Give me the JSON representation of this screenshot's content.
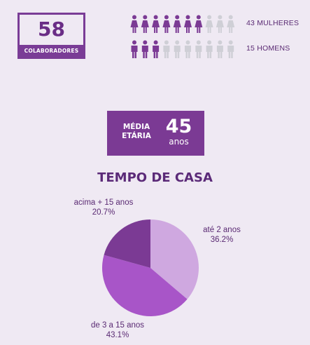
{
  "headcount": {
    "number": "58",
    "label": "COLABORADORES"
  },
  "gender": {
    "women_label": "43 MULHERES",
    "men_label": "15 HOMENS",
    "women_filled": 7,
    "men_filled": 3,
    "icons_per_row": 10,
    "colors": {
      "filled": "#7b3a94",
      "empty": "#cfcfd6"
    }
  },
  "age": {
    "label_line1": "MÉDIA",
    "label_line2": "ETÁRIA",
    "value": "45",
    "unit": "anos"
  },
  "chart_title": "TEMPO DE CASA",
  "chart_data": {
    "type": "pie",
    "title": "TEMPO DE CASA",
    "slices": [
      {
        "label": "até 2 anos",
        "value": 36.2,
        "value_label": "36.2%",
        "color": "#cfa8e0"
      },
      {
        "label": "de 3 a 15 anos",
        "value": 43.1,
        "value_label": "43.1%",
        "color": "#a855c8"
      },
      {
        "label": "acima + 15 anos",
        "value": 20.7,
        "value_label": "20.7%",
        "color": "#7b3a94"
      }
    ],
    "start": "12 o'clock",
    "direction": "clockwise"
  }
}
